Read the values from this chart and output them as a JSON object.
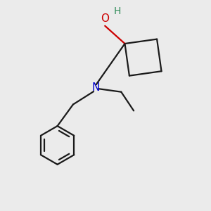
{
  "background_color": "#ebebeb",
  "bond_color": "#1a1a1a",
  "oxygen_color": "#cc0000",
  "nitrogen_color": "#0000cc",
  "hydrogen_color": "#2e8b57",
  "line_width": 1.6,
  "fig_width": 3.0,
  "fig_height": 3.0,
  "dpi": 100,
  "xlim": [
    0,
    10
  ],
  "ylim": [
    0,
    10
  ]
}
